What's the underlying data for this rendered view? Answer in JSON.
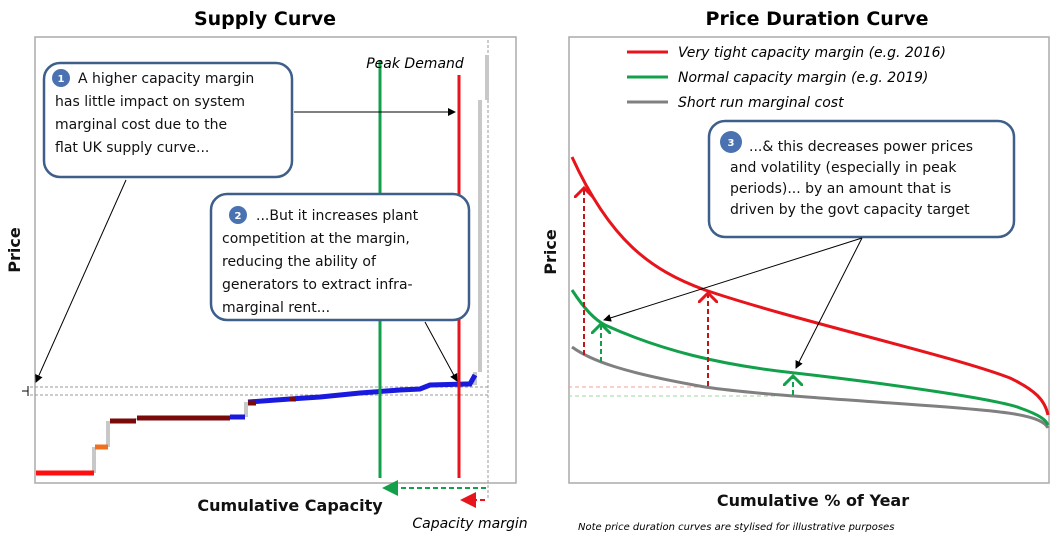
{
  "supply": {
    "title": "Supply Curve",
    "ylabel": "Price",
    "xlabel": "Cumulative Capacity",
    "peak_demand": "Peak Demand",
    "capacity_margin": "Capacity margin",
    "callout1": {
      "number": "1",
      "lines": [
        "A higher capacity margin",
        "has little impact on system",
        "marginal cost due to the",
        "flat UK supply curve..."
      ]
    },
    "callout2": {
      "number": "2",
      "lines": [
        "...But it increases plant",
        "competition at the margin,",
        "reducing the ability of",
        "generators to extract infra-",
        "marginal rent..."
      ]
    }
  },
  "duration": {
    "title": "Price Duration Curve",
    "ylabel": "Price",
    "xlabel": "Cumulative % of Year",
    "legend": [
      {
        "label": "Very tight capacity margin (e.g. 2016)",
        "color": "#e8141b"
      },
      {
        "label": "Normal capacity margin (e.g. 2019)",
        "color": "#13a04a"
      },
      {
        "label": "Short run marginal cost",
        "color": "#808080"
      }
    ],
    "callout3": {
      "number": "3",
      "lines": [
        "...& this decreases power prices",
        "and volatility (especially in peak",
        "periods)... by an amount that is",
        "driven by the govt capacity target"
      ]
    },
    "note": "Note price duration curves are stylised for illustrative purposes"
  },
  "colors": {
    "callout_border": "#3e5f8a",
    "badge": "#4a72b0",
    "supply_blue": "#1a1adf",
    "supply_darkred": "#7a0a0a",
    "supply_orange": "#f07020"
  }
}
